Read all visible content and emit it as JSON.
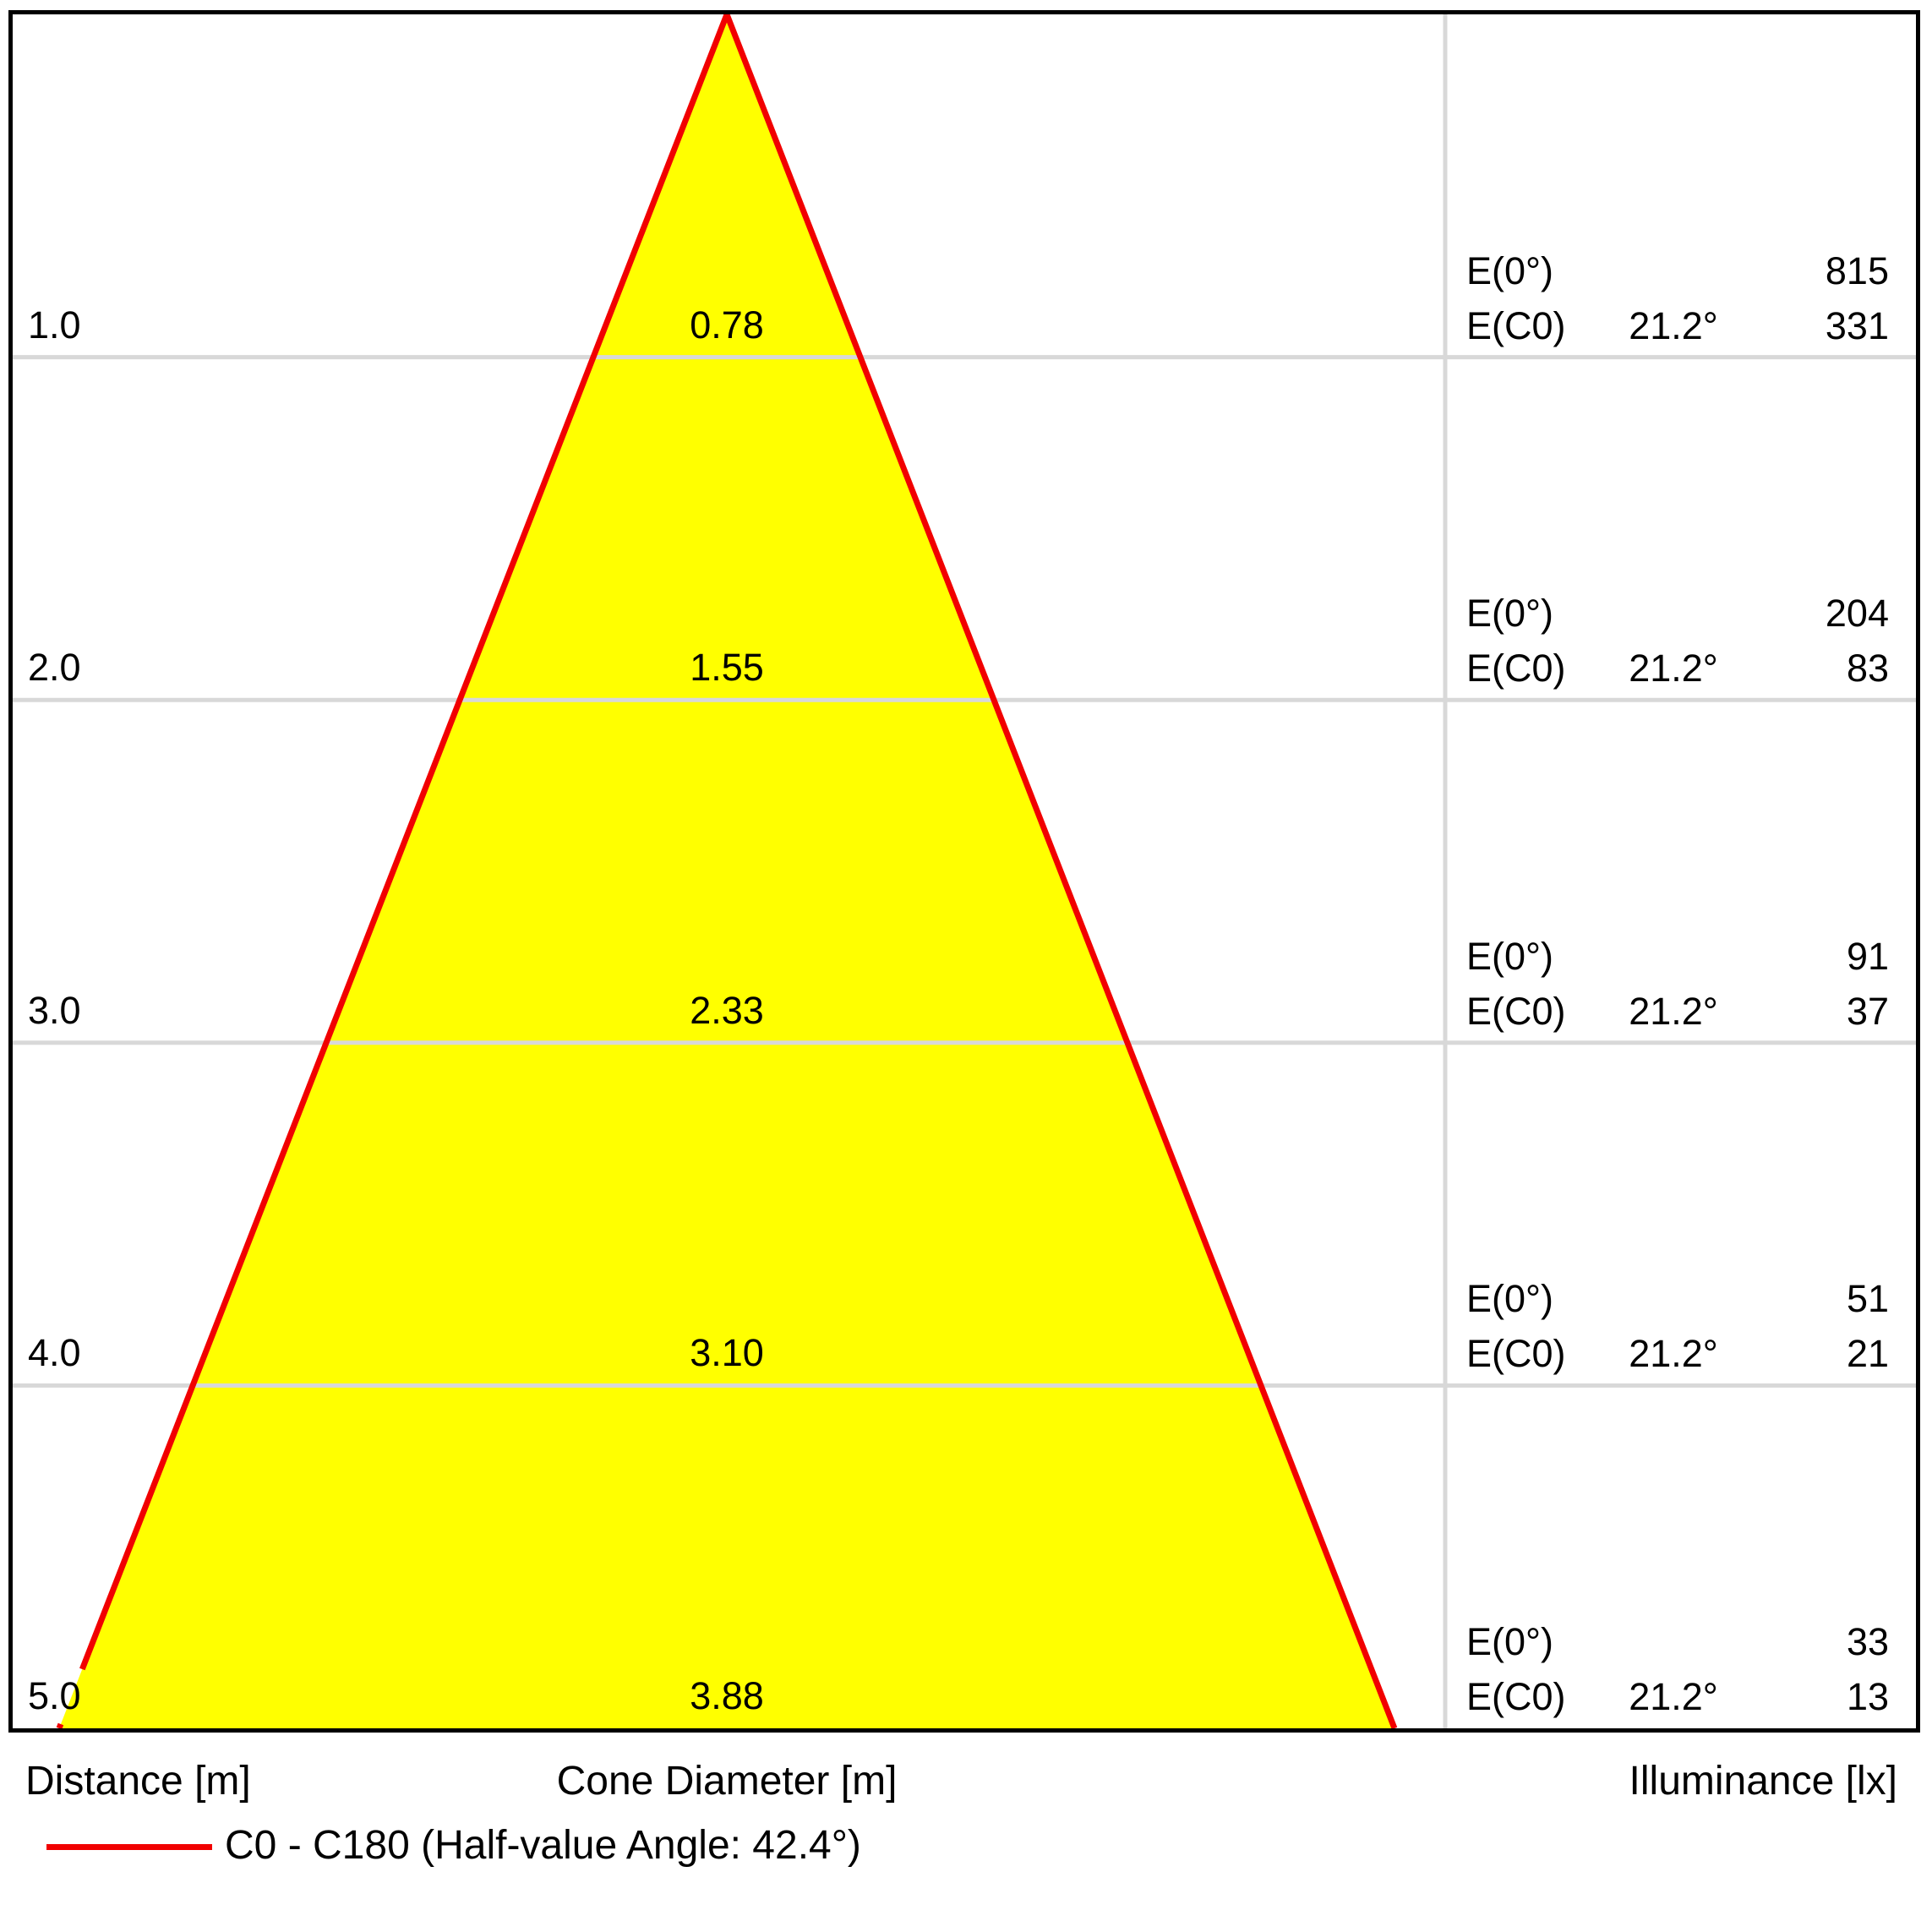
{
  "chart_data": {
    "type": "area",
    "subtype": "photometric-light-cone-diagram",
    "title": "",
    "axis_labels": {
      "distance": "Distance [m]",
      "cone_diameter": "Cone Diameter [m]",
      "illuminance": "Illuminance [lx]"
    },
    "legend": {
      "label": "C0 - C180 (Half-value Angle: 42.4°)",
      "half_value_angle": "42.4°"
    },
    "distances_m": [
      1.0,
      2.0,
      3.0,
      4.0,
      5.0
    ],
    "cone_diameters_m": [
      0.78,
      1.55,
      2.33,
      3.1,
      3.88
    ],
    "E0_lx": [
      815,
      204,
      91,
      51,
      33
    ],
    "EC0_lx": [
      331,
      83,
      37,
      21,
      13
    ],
    "beam_angle_at_EC0": "21.2°",
    "distance_range_m": [
      0,
      5
    ],
    "grid": true,
    "rows": [
      {
        "distance_m": "1.0",
        "cone_diameter_m": "0.78",
        "e0_label": "E(0°)",
        "e0_lx": "815",
        "ec0_label": "E(C0)",
        "ec0_angle": "21.2°",
        "ec0_lx": "331"
      },
      {
        "distance_m": "2.0",
        "cone_diameter_m": "1.55",
        "e0_label": "E(0°)",
        "e0_lx": "204",
        "ec0_label": "E(C0)",
        "ec0_angle": "21.2°",
        "ec0_lx": "83"
      },
      {
        "distance_m": "3.0",
        "cone_diameter_m": "2.33",
        "e0_label": "E(0°)",
        "e0_lx": "91",
        "ec0_label": "E(C0)",
        "ec0_angle": "21.2°",
        "ec0_lx": "37"
      },
      {
        "distance_m": "4.0",
        "cone_diameter_m": "3.10",
        "e0_label": "E(0°)",
        "e0_lx": "51",
        "ec0_label": "E(C0)",
        "ec0_angle": "21.2°",
        "ec0_lx": "21"
      },
      {
        "distance_m": "5.0",
        "cone_diameter_m": "3.88",
        "e0_label": "E(0°)",
        "e0_lx": "33",
        "ec0_label": "E(C0)",
        "ec0_angle": "21.2°",
        "ec0_lx": "13"
      }
    ],
    "colors": {
      "cone_fill": "#ffff00",
      "cone_edge": "#f10000",
      "gridline": "#d8d8d8",
      "border": "#000000",
      "text": "#000000"
    }
  }
}
